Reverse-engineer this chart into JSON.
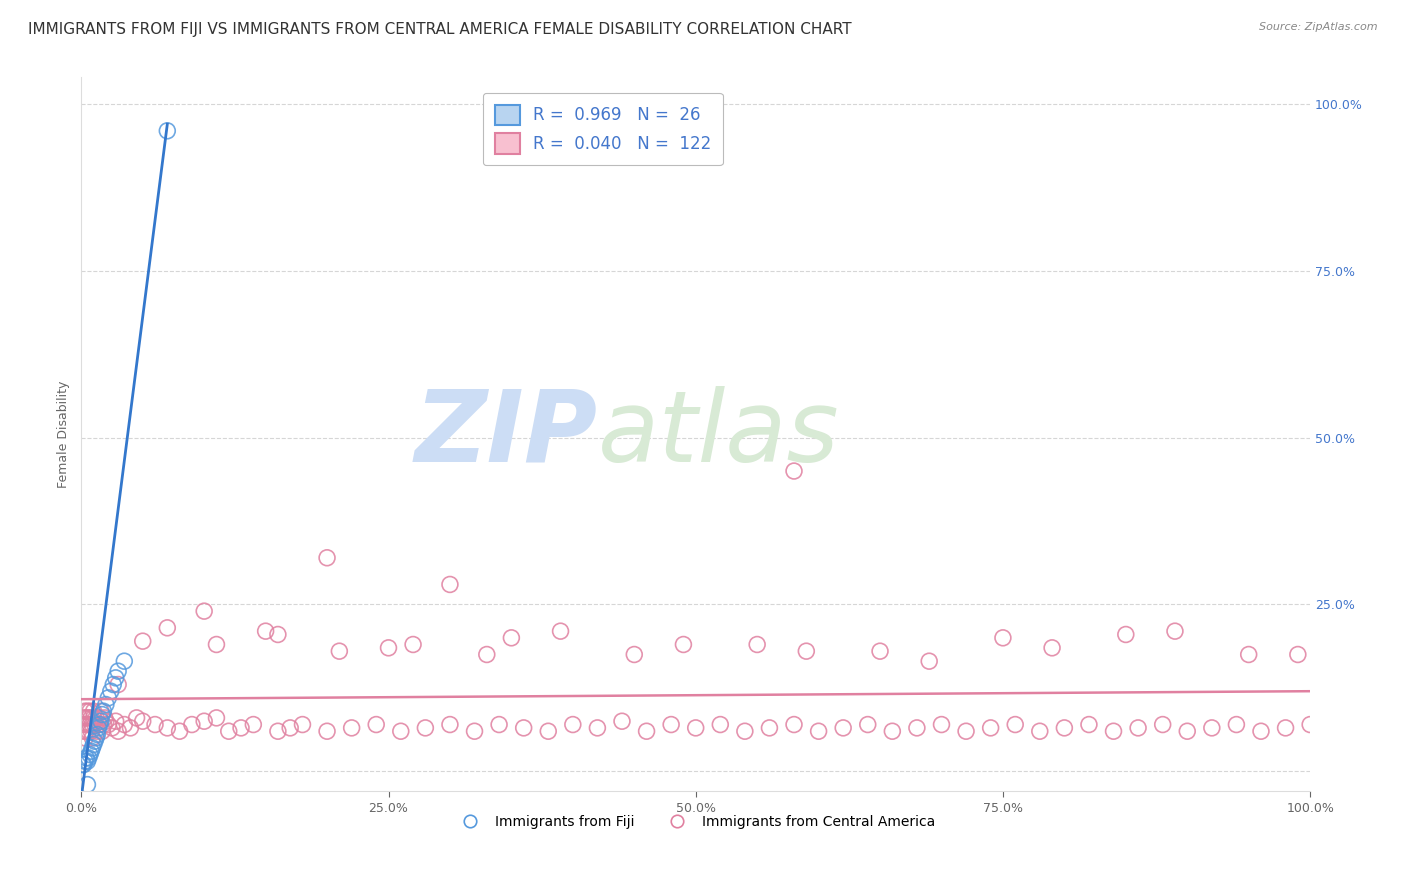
{
  "title": "IMMIGRANTS FROM FIJI VS IMMIGRANTS FROM CENTRAL AMERICA FEMALE DISABILITY CORRELATION CHART",
  "source": "Source: ZipAtlas.com",
  "ylabel": "Female Disability",
  "fiji_R": 0.969,
  "fiji_N": 26,
  "ca_R": 0.04,
  "ca_N": 122,
  "fiji_color": "#b8d4f0",
  "fiji_edge_color": "#5599dd",
  "ca_color": "#f8c0d0",
  "ca_edge_color": "#e080a0",
  "fiji_line_color": "#3377cc",
  "ca_line_color": "#e06080",
  "legend_text_color": "#4477cc",
  "watermark_color": "#ddeeff",
  "background_color": "#ffffff",
  "grid_color": "#cccccc",
  "title_fontsize": 11,
  "axis_fontsize": 9,
  "tick_fontsize": 9,
  "xlim": [
    0,
    1.0
  ],
  "ylim": [
    -0.03,
    1.04
  ],
  "yticks": [
    0.0,
    0.25,
    0.5,
    0.75,
    1.0
  ],
  "ytick_labels": [
    "",
    "25.0%",
    "50.0%",
    "75.0%",
    "100.0%"
  ],
  "xticks": [
    0.0,
    0.25,
    0.5,
    0.75,
    1.0
  ],
  "xtick_labels": [
    "0.0%",
    "25.0%",
    "50.0%",
    "75.0%",
    "100.0%"
  ],
  "fiji_scatter_x": [
    0.001,
    0.002,
    0.003,
    0.004,
    0.005,
    0.006,
    0.007,
    0.008,
    0.009,
    0.01,
    0.011,
    0.012,
    0.013,
    0.014,
    0.015,
    0.016,
    0.017,
    0.018,
    0.02,
    0.022,
    0.024,
    0.026,
    0.028,
    0.03,
    0.035,
    0.07
  ],
  "fiji_scatter_y": [
    0.01,
    0.01,
    0.015,
    0.02,
    0.015,
    0.02,
    0.025,
    0.03,
    0.035,
    0.04,
    0.045,
    0.05,
    0.055,
    0.065,
    0.07,
    0.075,
    0.085,
    0.09,
    0.1,
    0.11,
    0.12,
    0.13,
    0.14,
    0.15,
    0.165,
    0.96
  ],
  "fiji_extra_low_x": [
    0.005
  ],
  "fiji_extra_low_y": [
    -0.02
  ],
  "fiji_line_x": [
    0.0,
    0.07
  ],
  "fiji_line_y": [
    -0.04,
    0.97
  ],
  "ca_scatter_x": [
    0.001,
    0.002,
    0.002,
    0.003,
    0.003,
    0.004,
    0.004,
    0.005,
    0.005,
    0.006,
    0.006,
    0.007,
    0.007,
    0.008,
    0.008,
    0.009,
    0.009,
    0.01,
    0.01,
    0.011,
    0.012,
    0.013,
    0.014,
    0.015,
    0.016,
    0.017,
    0.018,
    0.019,
    0.02,
    0.022,
    0.025,
    0.028,
    0.03,
    0.035,
    0.04,
    0.045,
    0.05,
    0.06,
    0.07,
    0.08,
    0.09,
    0.1,
    0.11,
    0.12,
    0.13,
    0.14,
    0.16,
    0.17,
    0.18,
    0.2,
    0.22,
    0.24,
    0.26,
    0.28,
    0.3,
    0.32,
    0.34,
    0.36,
    0.38,
    0.4,
    0.42,
    0.44,
    0.46,
    0.48,
    0.5,
    0.52,
    0.54,
    0.56,
    0.58,
    0.6,
    0.62,
    0.64,
    0.66,
    0.68,
    0.7,
    0.72,
    0.74,
    0.76,
    0.78,
    0.8,
    0.82,
    0.84,
    0.86,
    0.88,
    0.9,
    0.92,
    0.94,
    0.96,
    0.98,
    1.0,
    0.58,
    0.3,
    0.2,
    0.1,
    0.05,
    0.03,
    0.15,
    0.25,
    0.35,
    0.45,
    0.55,
    0.65,
    0.75,
    0.85,
    0.95,
    0.07,
    0.11,
    0.16,
    0.21,
    0.27,
    0.33,
    0.39,
    0.49,
    0.59,
    0.69,
    0.79,
    0.89,
    0.99
  ],
  "ca_scatter_y": [
    0.07,
    0.08,
    0.06,
    0.09,
    0.05,
    0.08,
    0.06,
    0.07,
    0.09,
    0.08,
    0.06,
    0.07,
    0.09,
    0.06,
    0.08,
    0.07,
    0.05,
    0.08,
    0.09,
    0.07,
    0.08,
    0.06,
    0.07,
    0.08,
    0.09,
    0.06,
    0.07,
    0.08,
    0.075,
    0.07,
    0.065,
    0.075,
    0.06,
    0.07,
    0.065,
    0.08,
    0.075,
    0.07,
    0.065,
    0.06,
    0.07,
    0.075,
    0.08,
    0.06,
    0.065,
    0.07,
    0.06,
    0.065,
    0.07,
    0.06,
    0.065,
    0.07,
    0.06,
    0.065,
    0.07,
    0.06,
    0.07,
    0.065,
    0.06,
    0.07,
    0.065,
    0.075,
    0.06,
    0.07,
    0.065,
    0.07,
    0.06,
    0.065,
    0.07,
    0.06,
    0.065,
    0.07,
    0.06,
    0.065,
    0.07,
    0.06,
    0.065,
    0.07,
    0.06,
    0.065,
    0.07,
    0.06,
    0.065,
    0.07,
    0.06,
    0.065,
    0.07,
    0.06,
    0.065,
    0.07,
    0.45,
    0.28,
    0.32,
    0.24,
    0.195,
    0.13,
    0.21,
    0.185,
    0.2,
    0.175,
    0.19,
    0.18,
    0.2,
    0.205,
    0.175,
    0.215,
    0.19,
    0.205,
    0.18,
    0.19,
    0.175,
    0.21,
    0.19,
    0.18,
    0.165,
    0.185,
    0.21,
    0.175
  ],
  "ca_line_x": [
    0.0,
    1.0
  ],
  "ca_line_y": [
    0.108,
    0.12
  ]
}
